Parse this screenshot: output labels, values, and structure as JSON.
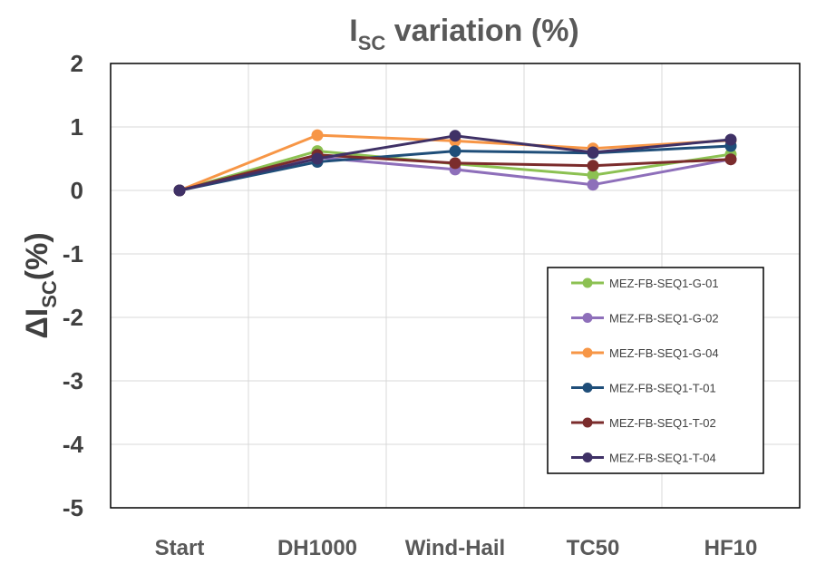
{
  "chart_data": {
    "type": "line",
    "title_main": "I",
    "title_sub": "SC",
    "title_rest": " variation (%)",
    "ylabel_prefix": "ΔI",
    "ylabel_sub": "SC",
    "ylabel_suffix": "(%)",
    "categories": [
      "Start",
      "DH1000",
      "Wind-Hail",
      "TC50",
      "HF10"
    ],
    "ylim": [
      -5,
      2
    ],
    "yticks": [
      2,
      1,
      0,
      -1,
      -2,
      -3,
      -4,
      -5
    ],
    "grid": true,
    "legend_position": "lower-right",
    "series": [
      {
        "name": "MEZ-FB-SEQ1-G-01",
        "color": "#8cc152",
        "values": [
          0,
          0.62,
          0.42,
          0.24,
          0.57
        ]
      },
      {
        "name": "MEZ-FB-SEQ1-G-02",
        "color": "#8e6fba",
        "values": [
          0,
          0.52,
          0.33,
          0.09,
          0.49
        ]
      },
      {
        "name": "MEZ-FB-SEQ1-G-04",
        "color": "#f79646",
        "values": [
          0,
          0.87,
          0.78,
          0.66,
          0.79
        ]
      },
      {
        "name": "MEZ-FB-SEQ1-T-01",
        "color": "#1f4e79",
        "values": [
          0,
          0.45,
          0.62,
          0.59,
          0.7
        ]
      },
      {
        "name": "MEZ-FB-SEQ1-T-02",
        "color": "#7b2c2c",
        "values": [
          0,
          0.56,
          0.43,
          0.39,
          0.49
        ]
      },
      {
        "name": "MEZ-FB-SEQ1-T-04",
        "color": "#3f3166",
        "values": [
          0,
          0.5,
          0.86,
          0.6,
          0.8
        ]
      }
    ]
  }
}
